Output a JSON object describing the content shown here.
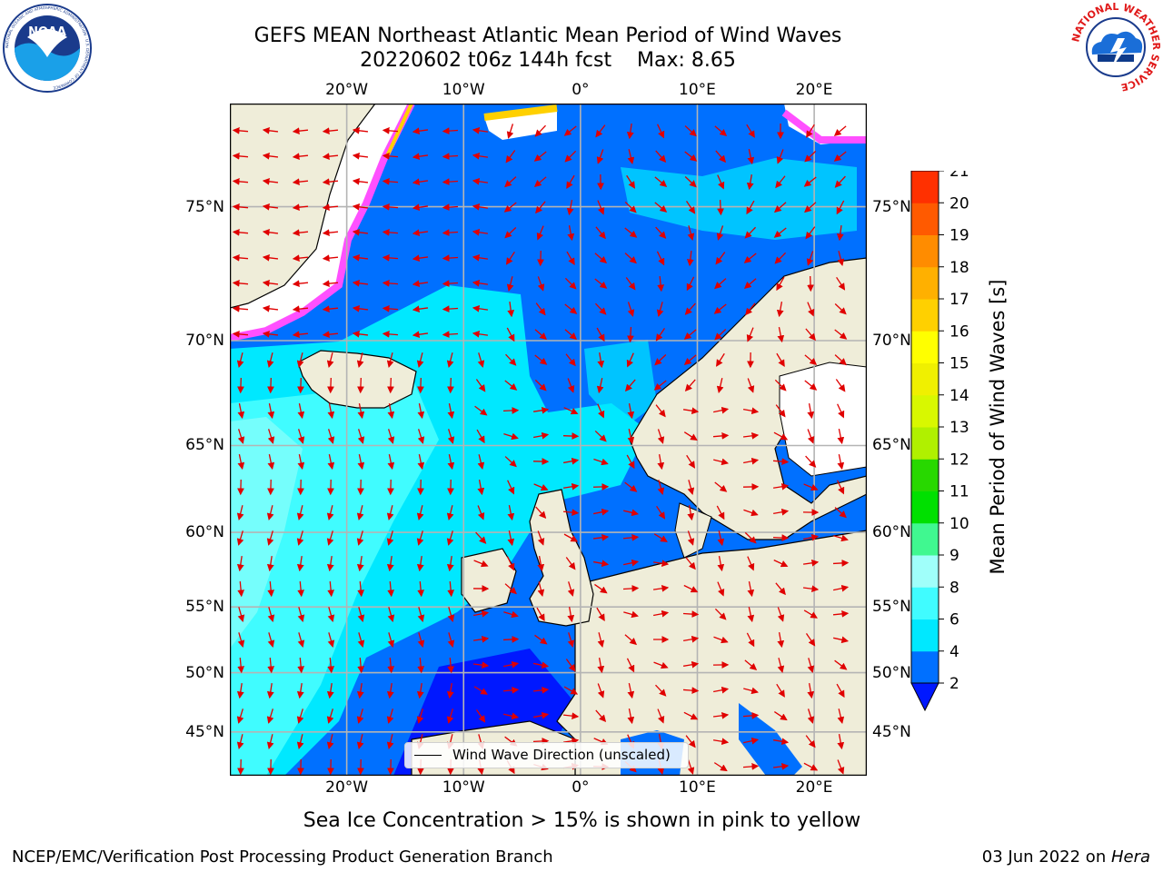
{
  "header": {
    "title_line1": "GEFS MEAN Northeast Atlantic Mean Period of Wind Waves",
    "title_line2": "20220602 t06z 144h fcst    Max: 8.65"
  },
  "logos": {
    "left": "NOAA",
    "left_ring_text": "NATIONAL OCEANIC AND ATMOSPHERIC ADMINISTRATION · U.S. DEPARTMENT OF COMMERCE",
    "right_ring_text": "NATIONAL WEATHER SERVICE"
  },
  "map": {
    "lon_ticks_top": [
      "20°W",
      "10°W",
      "0°",
      "10°E",
      "20°E"
    ],
    "lon_ticks_bottom": [
      "20°W",
      "10°W",
      "0°",
      "10°E",
      "20°E"
    ],
    "lat_ticks_left": [
      "75°N",
      "70°N",
      "65°N",
      "60°N",
      "55°N",
      "50°N",
      "45°N"
    ],
    "lat_ticks_right": [
      "75°N",
      "70°N",
      "65°N",
      "60°N",
      "55°N",
      "50°N",
      "45°N"
    ],
    "extent": {
      "lon": [
        -30,
        24.5
      ],
      "lat": [
        41,
        78
      ]
    },
    "projection": "Mercator",
    "max_value": 8.65,
    "colors": {
      "land": "#efedd9",
      "ice_free": "#ffffff",
      "grid": "#b4b4b4",
      "arrow": "#e00000"
    }
  },
  "legend": {
    "label": "Wind Wave Direction (unscaled)"
  },
  "colorbar": {
    "label": "Mean Period of Wind Waves [s]",
    "ticks": [
      "2",
      "4",
      "6",
      "8",
      "9",
      "10",
      "11",
      "12",
      "13",
      "14",
      "15",
      "16",
      "17",
      "18",
      "19",
      "20",
      "21"
    ],
    "colors": [
      "#0070ff",
      "#00e8ff",
      "#40fcff",
      "#a0fffa",
      "#40f890",
      "#00e000",
      "#28d800",
      "#b0f000",
      "#d8f800",
      "#f0f000",
      "#ffff00",
      "#ffd000",
      "#ffb000",
      "#ff8c00",
      "#ff5a00",
      "#ff3000",
      "#ff0000"
    ],
    "under_color": "#0018ff"
  },
  "footer": {
    "caption": "Sea Ice Concentration > 15% is shown in pink to yellow",
    "credit": "NCEP/EMC/Verification Post Processing Product Generation Branch",
    "date": "03 Jun 2022 on ",
    "host": "Hera"
  }
}
